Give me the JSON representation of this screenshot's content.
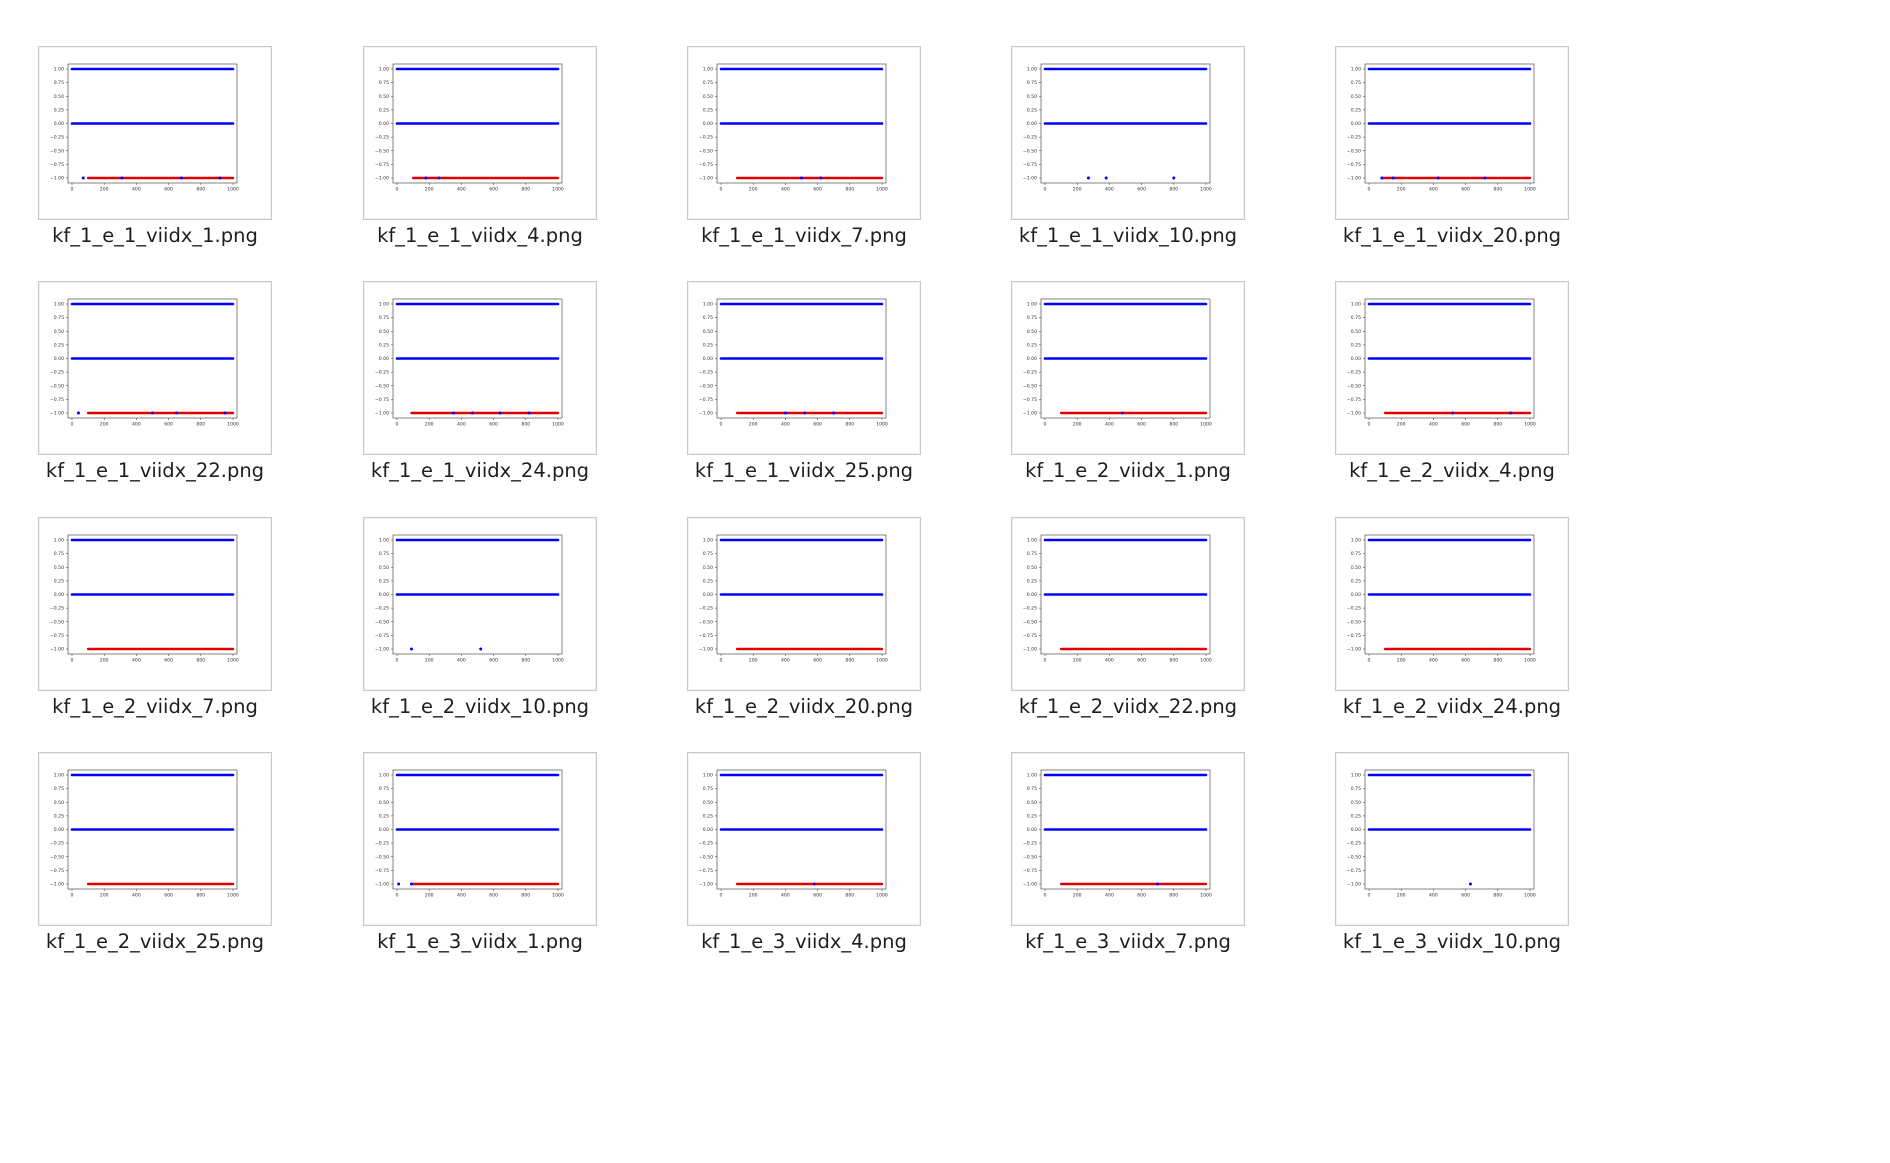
{
  "thumbnail_chart": {
    "type": "scatter",
    "xlim": [
      0,
      1000
    ],
    "ylim": [
      -1.0,
      1.0
    ],
    "x_ticks": [
      "0",
      "200",
      "400",
      "600",
      "800",
      "1000"
    ],
    "y_ticks": [
      "1.00",
      "0.75",
      "0.50",
      "0.25",
      "0.00",
      "−0.25",
      "−0.50",
      "−0.75",
      "−1.00"
    ],
    "colors": {
      "blue": "#0000ff",
      "red": "#e00000"
    }
  },
  "files": [
    {
      "name": "kf_1_e_1_viidx_1.png",
      "red_start": 100,
      "blue_minus": [
        70,
        310,
        680,
        920
      ]
    },
    {
      "name": "kf_1_e_1_viidx_4.png",
      "red_start": 100,
      "blue_minus": [
        180,
        260
      ]
    },
    {
      "name": "kf_1_e_1_viidx_7.png",
      "red_start": 100,
      "blue_minus": [
        500,
        620
      ]
    },
    {
      "name": "kf_1_e_1_viidx_10.png",
      "red_start": null,
      "blue_minus": [
        270,
        380,
        800
      ]
    },
    {
      "name": "kf_1_e_1_viidx_20.png",
      "red_start": 80,
      "blue_minus": [
        80,
        150,
        430,
        720
      ]
    },
    {
      "name": "kf_1_e_1_viidx_22.png",
      "red_start": 100,
      "blue_minus": [
        40,
        500,
        650,
        950
      ]
    },
    {
      "name": "kf_1_e_1_viidx_24.png",
      "red_start": 90,
      "blue_minus": [
        350,
        470,
        640,
        820
      ]
    },
    {
      "name": "kf_1_e_1_viidx_25.png",
      "red_start": 100,
      "blue_minus": [
        400,
        520,
        700
      ]
    },
    {
      "name": "kf_1_e_2_viidx_1.png",
      "red_start": 100,
      "blue_minus": [
        480
      ]
    },
    {
      "name": "kf_1_e_2_viidx_4.png",
      "red_start": 100,
      "blue_minus": [
        520,
        880
      ]
    },
    {
      "name": "kf_1_e_2_viidx_7.png",
      "red_start": 100,
      "blue_minus": []
    },
    {
      "name": "kf_1_e_2_viidx_10.png",
      "red_start": null,
      "blue_minus": [
        90,
        520
      ]
    },
    {
      "name": "kf_1_e_2_viidx_20.png",
      "red_start": 100,
      "blue_minus": []
    },
    {
      "name": "kf_1_e_2_viidx_22.png",
      "red_start": 100,
      "blue_minus": []
    },
    {
      "name": "kf_1_e_2_viidx_24.png",
      "red_start": 100,
      "blue_minus": []
    },
    {
      "name": "kf_1_e_2_viidx_25.png",
      "red_start": 100,
      "blue_minus": []
    },
    {
      "name": "kf_1_e_3_viidx_1.png",
      "red_start": 100,
      "blue_minus": [
        10,
        90
      ]
    },
    {
      "name": "kf_1_e_3_viidx_4.png",
      "red_start": 100,
      "blue_minus": [
        580
      ]
    },
    {
      "name": "kf_1_e_3_viidx_7.png",
      "red_start": 100,
      "blue_minus": [
        700
      ]
    },
    {
      "name": "kf_1_e_3_viidx_10.png",
      "red_start": null,
      "blue_minus": [
        630
      ]
    }
  ]
}
